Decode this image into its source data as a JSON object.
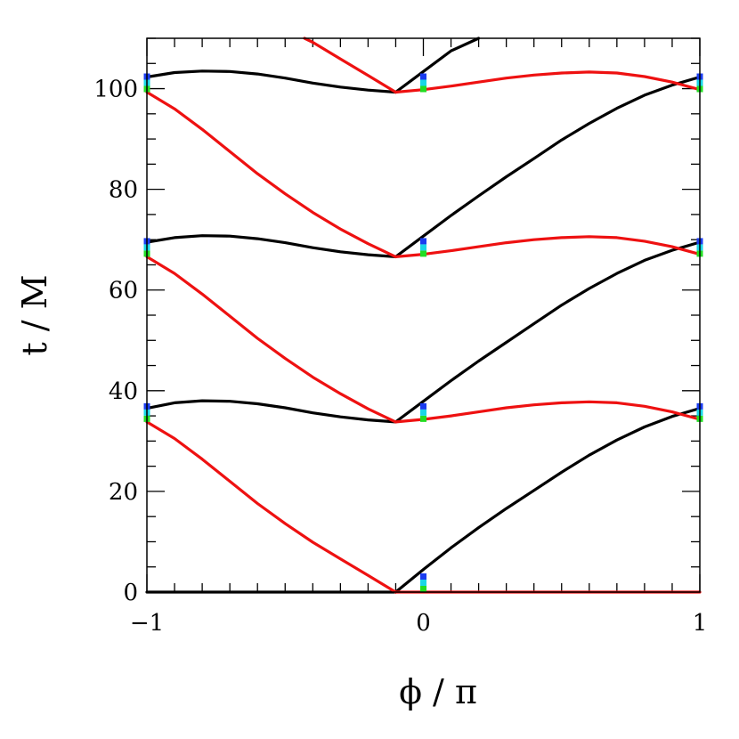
{
  "chart_data": {
    "type": "line",
    "title": "",
    "xlabel": "ϕ  /  π",
    "ylabel": "t  /  M",
    "xlim": [
      -1,
      1
    ],
    "ylim": [
      0,
      110
    ],
    "xticks": [
      -1,
      0,
      1
    ],
    "xtick_labels": [
      "−1",
      "0",
      "1"
    ],
    "yticks": [
      0,
      20,
      40,
      60,
      80,
      100
    ],
    "ytick_labels": [
      "0",
      "20",
      "40",
      "60",
      "80",
      "100"
    ],
    "grid": false,
    "legend": "none",
    "series_colors": {
      "black": "#000000",
      "red": "#ee1111",
      "blue": "#1a3cf0",
      "cyan": "#19d6e6",
      "green": "#22dd22"
    },
    "series": [
      {
        "color": "black",
        "points": [
          [
            -1,
            0
          ],
          [
            -0.1,
            0
          ]
        ]
      },
      {
        "color": "black",
        "points": [
          [
            -0.1,
            0
          ],
          [
            0,
            4.5
          ],
          [
            0.1,
            8.8
          ],
          [
            0.2,
            12.8
          ],
          [
            0.3,
            16.6
          ],
          [
            0.4,
            20.2
          ],
          [
            0.5,
            23.8
          ],
          [
            0.6,
            27.2
          ],
          [
            0.7,
            30.2
          ],
          [
            0.8,
            32.8
          ],
          [
            0.9,
            34.9
          ],
          [
            1,
            36.5
          ]
        ]
      },
      {
        "color": "black",
        "points": [
          [
            -1,
            36.5
          ],
          [
            -0.9,
            37.6
          ],
          [
            -0.8,
            38.0
          ],
          [
            -0.7,
            37.9
          ],
          [
            -0.6,
            37.4
          ],
          [
            -0.5,
            36.6
          ],
          [
            -0.4,
            35.6
          ],
          [
            -0.3,
            34.8
          ],
          [
            -0.2,
            34.2
          ],
          [
            -0.1,
            33.8
          ]
        ]
      },
      {
        "color": "black",
        "points": [
          [
            -0.1,
            33.8
          ],
          [
            0,
            37.9
          ],
          [
            0.1,
            42.0
          ],
          [
            0.2,
            45.9
          ],
          [
            0.3,
            49.6
          ],
          [
            0.4,
            53.3
          ],
          [
            0.5,
            57.0
          ],
          [
            0.6,
            60.3
          ],
          [
            0.7,
            63.3
          ],
          [
            0.8,
            65.9
          ],
          [
            0.9,
            67.9
          ],
          [
            1,
            69.5
          ]
        ]
      },
      {
        "color": "black",
        "points": [
          [
            -1,
            69.5
          ],
          [
            -0.9,
            70.4
          ],
          [
            -0.8,
            70.8
          ],
          [
            -0.7,
            70.7
          ],
          [
            -0.6,
            70.2
          ],
          [
            -0.5,
            69.4
          ],
          [
            -0.4,
            68.4
          ],
          [
            -0.3,
            67.6
          ],
          [
            -0.2,
            67.0
          ],
          [
            -0.1,
            66.6
          ]
        ]
      },
      {
        "color": "black",
        "points": [
          [
            -0.1,
            66.6
          ],
          [
            0,
            70.7
          ],
          [
            0.1,
            74.8
          ],
          [
            0.2,
            78.7
          ],
          [
            0.3,
            82.5
          ],
          [
            0.4,
            86.1
          ],
          [
            0.5,
            89.8
          ],
          [
            0.6,
            93.1
          ],
          [
            0.7,
            96.1
          ],
          [
            0.8,
            98.7
          ],
          [
            0.9,
            100.7
          ],
          [
            1,
            102.3
          ]
        ]
      },
      {
        "color": "black",
        "points": [
          [
            -1,
            102.3
          ],
          [
            -0.9,
            103.2
          ],
          [
            -0.8,
            103.5
          ],
          [
            -0.7,
            103.4
          ],
          [
            -0.6,
            102.9
          ],
          [
            -0.5,
            102.1
          ],
          [
            -0.4,
            101.1
          ],
          [
            -0.3,
            100.3
          ],
          [
            -0.2,
            99.7
          ],
          [
            -0.1,
            99.3
          ]
        ]
      },
      {
        "color": "black",
        "points": [
          [
            -0.1,
            99.3
          ],
          [
            0,
            103.4
          ],
          [
            0.1,
            107.5
          ],
          [
            0.2,
            110
          ]
        ]
      },
      {
        "color": "red",
        "points": [
          [
            -0.1,
            0
          ],
          [
            1,
            0
          ]
        ]
      },
      {
        "color": "red",
        "points": [
          [
            -1,
            33.8
          ],
          [
            -0.9,
            30.5
          ],
          [
            -0.8,
            26.4
          ],
          [
            -0.7,
            22.0
          ],
          [
            -0.6,
            17.6
          ],
          [
            -0.5,
            13.6
          ],
          [
            -0.4,
            9.9
          ],
          [
            -0.3,
            6.6
          ],
          [
            -0.2,
            3.3
          ],
          [
            -0.1,
            0
          ]
        ]
      },
      {
        "color": "red",
        "points": [
          [
            -0.1,
            33.8
          ],
          [
            0,
            34.3
          ],
          [
            0.1,
            35.0
          ],
          [
            0.2,
            35.8
          ],
          [
            0.3,
            36.6
          ],
          [
            0.4,
            37.2
          ],
          [
            0.5,
            37.6
          ],
          [
            0.6,
            37.8
          ],
          [
            0.7,
            37.6
          ],
          [
            0.8,
            36.9
          ],
          [
            0.9,
            35.8
          ],
          [
            1,
            34.3
          ]
        ]
      },
      {
        "color": "red",
        "points": [
          [
            -1,
            66.6
          ],
          [
            -0.9,
            63.3
          ],
          [
            -0.8,
            59.2
          ],
          [
            -0.7,
            54.8
          ],
          [
            -0.6,
            50.4
          ],
          [
            -0.5,
            46.4
          ],
          [
            -0.4,
            42.7
          ],
          [
            -0.3,
            39.4
          ],
          [
            -0.2,
            36.4
          ],
          [
            -0.1,
            33.8
          ]
        ]
      },
      {
        "color": "red",
        "points": [
          [
            -0.1,
            66.6
          ],
          [
            0,
            67.1
          ],
          [
            0.1,
            67.8
          ],
          [
            0.2,
            68.6
          ],
          [
            0.3,
            69.4
          ],
          [
            0.4,
            70.0
          ],
          [
            0.5,
            70.4
          ],
          [
            0.6,
            70.6
          ],
          [
            0.7,
            70.4
          ],
          [
            0.8,
            69.7
          ],
          [
            0.9,
            68.6
          ],
          [
            1,
            67.1
          ]
        ]
      },
      {
        "color": "red",
        "points": [
          [
            -1,
            99.3
          ],
          [
            -0.9,
            96.0
          ],
          [
            -0.8,
            91.9
          ],
          [
            -0.7,
            87.5
          ],
          [
            -0.6,
            83.1
          ],
          [
            -0.5,
            79.1
          ],
          [
            -0.4,
            75.4
          ],
          [
            -0.3,
            72.1
          ],
          [
            -0.2,
            69.2
          ],
          [
            -0.1,
            66.6
          ]
        ]
      },
      {
        "color": "red",
        "points": [
          [
            -0.1,
            99.3
          ],
          [
            0,
            99.8
          ],
          [
            0.1,
            100.5
          ],
          [
            0.2,
            101.3
          ],
          [
            0.3,
            102.1
          ],
          [
            0.4,
            102.7
          ],
          [
            0.5,
            103.1
          ],
          [
            0.6,
            103.3
          ],
          [
            0.7,
            103.1
          ],
          [
            0.8,
            102.4
          ],
          [
            0.9,
            101.3
          ],
          [
            1,
            99.8
          ]
        ]
      },
      {
        "color": "red",
        "points": [
          [
            -0.1,
            99.3
          ],
          [
            -0.2,
            102.6
          ],
          [
            -0.3,
            105.9
          ],
          [
            -0.4,
            109.2
          ],
          [
            -0.43,
            110
          ]
        ]
      }
    ],
    "markers": [
      {
        "x": 0,
        "t": 0,
        "colors": [
          "green",
          "cyan",
          "blue"
        ]
      },
      {
        "x": 0,
        "t": 33.8,
        "colors": [
          "green",
          "cyan",
          "blue"
        ]
      },
      {
        "x": 0,
        "t": 66.6,
        "colors": [
          "green",
          "cyan",
          "blue"
        ]
      },
      {
        "x": 0,
        "t": 99.3,
        "colors": [
          "green",
          "cyan",
          "blue"
        ]
      },
      {
        "x": -1,
        "t": 33.8,
        "colors": [
          "green",
          "cyan",
          "blue"
        ]
      },
      {
        "x": -1,
        "t": 66.6,
        "colors": [
          "green",
          "cyan",
          "blue"
        ]
      },
      {
        "x": -1,
        "t": 99.3,
        "colors": [
          "green",
          "cyan",
          "blue"
        ]
      },
      {
        "x": 1,
        "t": 33.8,
        "colors": [
          "green",
          "cyan",
          "blue"
        ]
      },
      {
        "x": 1,
        "t": 66.6,
        "colors": [
          "green",
          "cyan",
          "blue"
        ]
      },
      {
        "x": 1,
        "t": 99.3,
        "colors": [
          "green",
          "cyan",
          "blue"
        ]
      }
    ]
  }
}
